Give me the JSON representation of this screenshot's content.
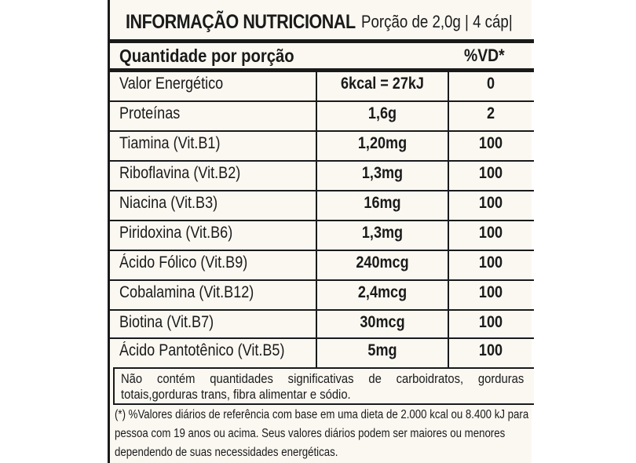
{
  "header": {
    "title": "INFORMAÇÃO NUTRICIONAL",
    "portion": "Porção de 2,0g | 4 cáp|"
  },
  "columns": {
    "quantity_per_portion": "Quantidade por porção",
    "vd": "%VD*"
  },
  "rows": [
    {
      "name": "Valor Energético",
      "qty": "6kcal = 27kJ",
      "vd": "0"
    },
    {
      "name": "Proteínas",
      "qty": "1,6g",
      "vd": "2"
    },
    {
      "name": "Tiamina (Vit.B1)",
      "qty": "1,20mg",
      "vd": "100"
    },
    {
      "name": "Riboflavina (Vit.B2)",
      "qty": "1,3mg",
      "vd": "100"
    },
    {
      "name": "Niacina (Vit.B3)",
      "qty": "16mg",
      "vd": "100"
    },
    {
      "name": "Piridoxina (Vit.B6)",
      "qty": "1,3mg",
      "vd": "100"
    },
    {
      "name": "Ácido Fólico (Vit.B9)",
      "qty": "240mcg",
      "vd": "100"
    },
    {
      "name": "Cobalamina (Vit.B12)",
      "qty": "2,4mcg",
      "vd": "100"
    },
    {
      "name": "Biotina (Vit.B7)",
      "qty": "30mcg",
      "vd": "100"
    },
    {
      "name": "Ácido Pantotênico (Vit.B5)",
      "qty": "5mg",
      "vd": "100"
    }
  ],
  "note": "Não contém quantidades significativas de carboidratos, gorduras totais,gorduras trans, fibra alimentar e sódio.",
  "footnote": "(*) %Valores diários de referência com base em uma dieta de 2.000 kcal ou 8.400 kJ para pessoa com 19 anos ou acima. Seus valores diários podem ser maiores ou menores dependendo de suas necessidades energéticas."
}
